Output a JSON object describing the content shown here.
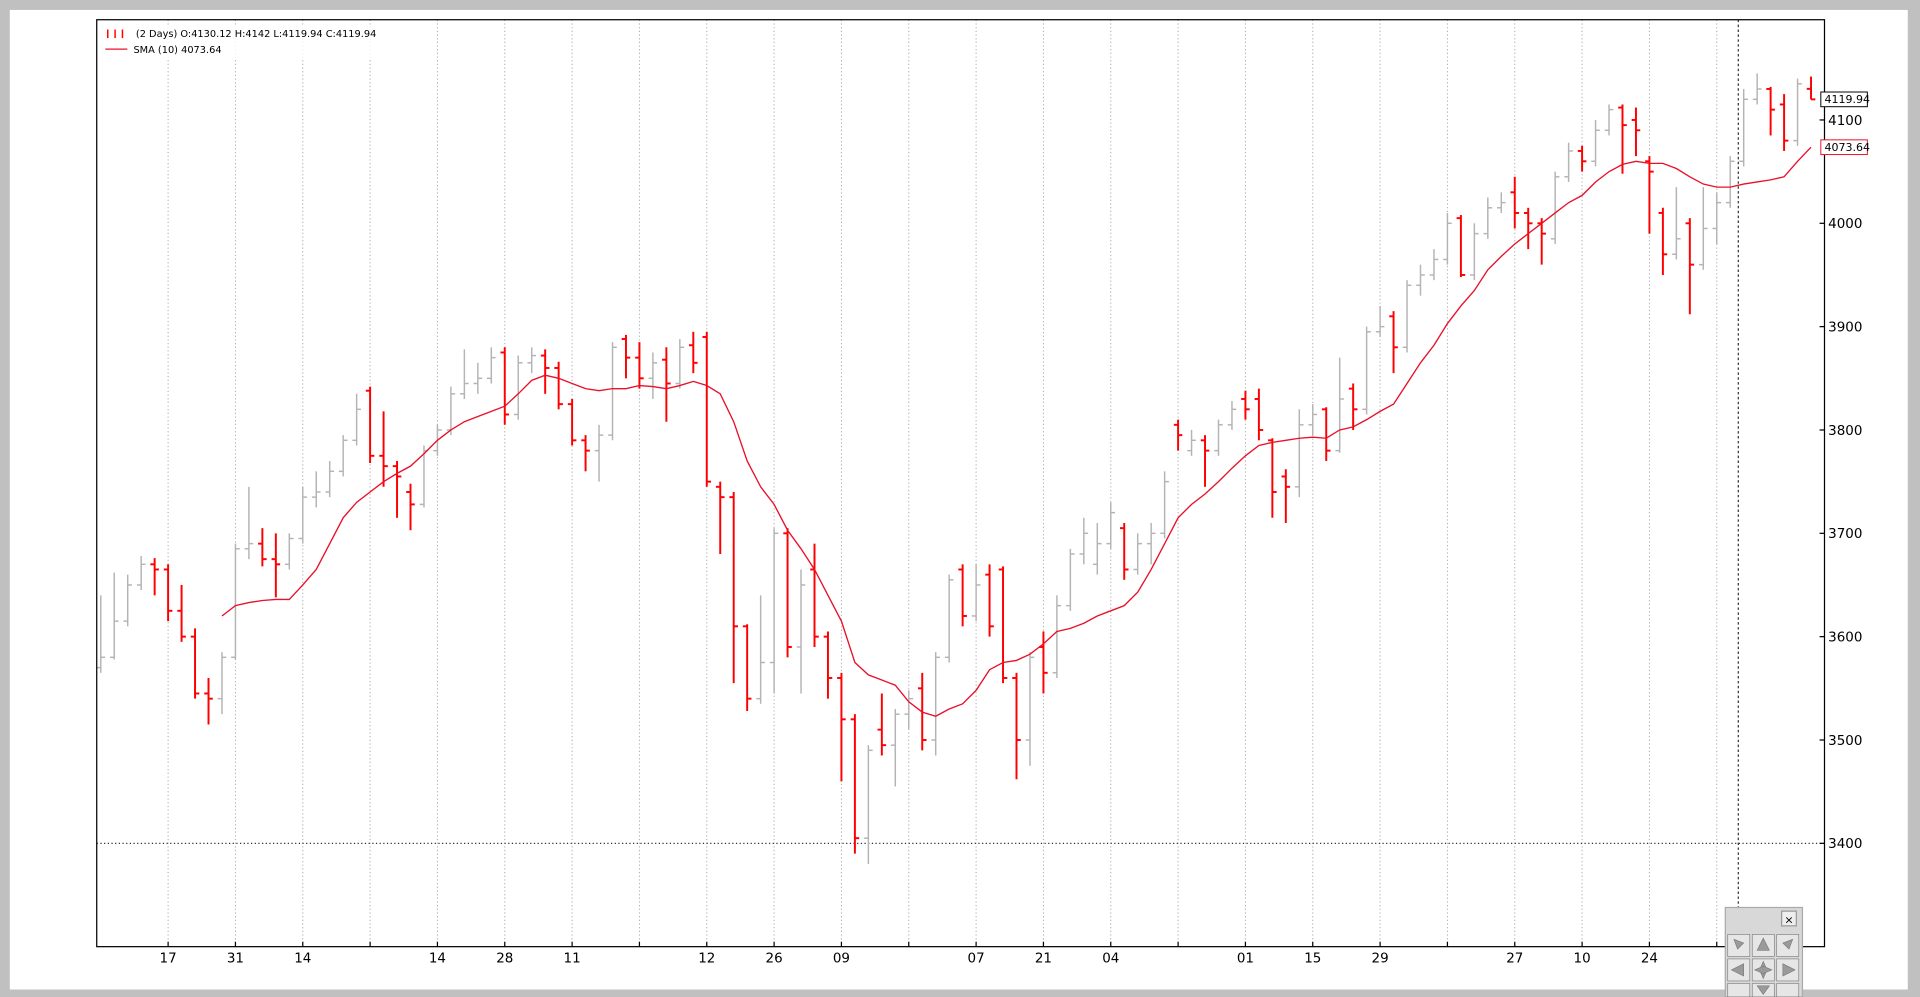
{
  "chart_data": {
    "type": "ohlc",
    "legend": [
      "(2 Days) O:4130.12 H:4142 L:4119.94 C:4119.94",
      "SMA (10) 4073.64"
    ],
    "up_color": "#b4b4b4",
    "down_color": "#ff0000",
    "ohlc": [
      [
        3570,
        3640,
        3565,
        3580
      ],
      [
        3580,
        3662,
        3578,
        3615
      ],
      [
        3615,
        3660,
        3610,
        3650
      ],
      [
        3650,
        3678,
        3645,
        3670
      ],
      [
        3670,
        3676,
        3640,
        3665
      ],
      [
        3665,
        3670,
        3615,
        3625
      ],
      [
        3625,
        3650,
        3595,
        3600
      ],
      [
        3600,
        3608,
        3540,
        3545
      ],
      [
        3545,
        3560,
        3515,
        3540
      ],
      [
        3540,
        3585,
        3525,
        3580
      ],
      [
        3580,
        3690,
        3578,
        3685
      ],
      [
        3685,
        3745,
        3675,
        3690
      ],
      [
        3690,
        3705,
        3668,
        3675
      ],
      [
        3675,
        3700,
        3638,
        3670
      ],
      [
        3670,
        3700,
        3665,
        3695
      ],
      [
        3695,
        3745,
        3690,
        3735
      ],
      [
        3735,
        3760,
        3725,
        3740
      ],
      [
        3740,
        3770,
        3735,
        3760
      ],
      [
        3760,
        3795,
        3755,
        3790
      ],
      [
        3790,
        3835,
        3785,
        3820
      ],
      [
        3838,
        3842,
        3768,
        3775
      ],
      [
        3775,
        3818,
        3745,
        3765
      ],
      [
        3765,
        3770,
        3715,
        3755
      ],
      [
        3740,
        3748,
        3703,
        3728
      ],
      [
        3728,
        3785,
        3725,
        3780
      ],
      [
        3780,
        3805,
        3775,
        3800
      ],
      [
        3800,
        3842,
        3795,
        3835
      ],
      [
        3835,
        3878,
        3830,
        3845
      ],
      [
        3845,
        3865,
        3835,
        3850
      ],
      [
        3850,
        3880,
        3845,
        3870
      ],
      [
        3875,
        3880,
        3805,
        3815
      ],
      [
        3815,
        3872,
        3810,
        3865
      ],
      [
        3865,
        3880,
        3855,
        3872
      ],
      [
        3872,
        3878,
        3835,
        3860
      ],
      [
        3860,
        3866,
        3820,
        3825
      ],
      [
        3825,
        3830,
        3785,
        3790
      ],
      [
        3790,
        3795,
        3760,
        3780
      ],
      [
        3780,
        3805,
        3750,
        3795
      ],
      [
        3795,
        3885,
        3790,
        3880
      ],
      [
        3888,
        3892,
        3850,
        3870
      ],
      [
        3870,
        3885,
        3840,
        3850
      ],
      [
        3850,
        3875,
        3830,
        3865
      ],
      [
        3868,
        3880,
        3808,
        3845
      ],
      [
        3845,
        3888,
        3840,
        3880
      ],
      [
        3882,
        3895,
        3855,
        3865
      ],
      [
        3890,
        3895,
        3745,
        3750
      ],
      [
        3745,
        3750,
        3680,
        3735
      ],
      [
        3735,
        3740,
        3555,
        3610
      ],
      [
        3610,
        3612,
        3528,
        3540
      ],
      [
        3540,
        3640,
        3535,
        3575
      ],
      [
        3575,
        3705,
        3545,
        3700
      ],
      [
        3700,
        3705,
        3580,
        3590
      ],
      [
        3590,
        3665,
        3545,
        3650
      ],
      [
        3665,
        3690,
        3590,
        3600
      ],
      [
        3600,
        3605,
        3540,
        3560
      ],
      [
        3560,
        3565,
        3460,
        3520
      ],
      [
        3520,
        3525,
        3390,
        3405
      ],
      [
        3405,
        3495,
        3380,
        3490
      ],
      [
        3510,
        3545,
        3485,
        3495
      ],
      [
        3495,
        3530,
        3455,
        3525
      ],
      [
        3525,
        3548,
        3510,
        3540
      ],
      [
        3550,
        3565,
        3490,
        3500
      ],
      [
        3500,
        3585,
        3485,
        3580
      ],
      [
        3580,
        3660,
        3575,
        3655
      ],
      [
        3665,
        3670,
        3610,
        3620
      ],
      [
        3620,
        3670,
        3615,
        3650
      ],
      [
        3660,
        3670,
        3600,
        3610
      ],
      [
        3665,
        3668,
        3555,
        3560
      ],
      [
        3560,
        3565,
        3462,
        3500
      ],
      [
        3500,
        3585,
        3475,
        3580
      ],
      [
        3590,
        3605,
        3545,
        3565
      ],
      [
        3565,
        3640,
        3560,
        3630
      ],
      [
        3630,
        3685,
        3625,
        3680
      ],
      [
        3680,
        3715,
        3670,
        3700
      ],
      [
        3670,
        3710,
        3660,
        3690
      ],
      [
        3690,
        3730,
        3685,
        3720
      ],
      [
        3705,
        3710,
        3655,
        3665
      ],
      [
        3665,
        3700,
        3660,
        3690
      ],
      [
        3690,
        3710,
        3670,
        3700
      ],
      [
        3700,
        3760,
        3695,
        3750
      ],
      [
        3805,
        3810,
        3780,
        3795
      ],
      [
        3780,
        3800,
        3775,
        3790
      ],
      [
        3790,
        3795,
        3745,
        3780
      ],
      [
        3780,
        3810,
        3775,
        3805
      ],
      [
        3805,
        3828,
        3800,
        3820
      ],
      [
        3830,
        3838,
        3810,
        3820
      ],
      [
        3830,
        3840,
        3790,
        3800
      ],
      [
        3790,
        3792,
        3715,
        3740
      ],
      [
        3755,
        3762,
        3710,
        3745
      ],
      [
        3745,
        3820,
        3735,
        3805
      ],
      [
        3805,
        3825,
        3795,
        3815
      ],
      [
        3820,
        3822,
        3770,
        3780
      ],
      [
        3780,
        3870,
        3778,
        3830
      ],
      [
        3840,
        3845,
        3800,
        3820
      ],
      [
        3820,
        3900,
        3815,
        3895
      ],
      [
        3895,
        3920,
        3890,
        3900
      ],
      [
        3910,
        3915,
        3855,
        3880
      ],
      [
        3880,
        3945,
        3875,
        3940
      ],
      [
        3940,
        3960,
        3930,
        3950
      ],
      [
        3950,
        3975,
        3945,
        3965
      ],
      [
        3965,
        4010,
        3960,
        4000
      ],
      [
        4005,
        4008,
        3948,
        3950
      ],
      [
        3950,
        4000,
        3945,
        3990
      ],
      [
        3990,
        4025,
        3985,
        4015
      ],
      [
        4015,
        4030,
        4010,
        4020
      ],
      [
        4030,
        4045,
        3995,
        4010
      ],
      [
        4010,
        4015,
        3975,
        4000
      ],
      [
        4000,
        4005,
        3960,
        3990
      ],
      [
        3985,
        4050,
        3980,
        4045
      ],
      [
        4045,
        4078,
        4040,
        4070
      ],
      [
        4070,
        4075,
        4050,
        4060
      ],
      [
        4060,
        4100,
        4055,
        4090
      ],
      [
        4090,
        4115,
        4085,
        4110
      ],
      [
        4112,
        4115,
        4048,
        4095
      ],
      [
        4100,
        4112,
        4065,
        4090
      ],
      [
        4060,
        4065,
        3990,
        4050
      ],
      [
        4010,
        4015,
        3950,
        3970
      ],
      [
        3970,
        4035,
        3965,
        3985
      ],
      [
        4000,
        4005,
        3912,
        3960
      ],
      [
        3960,
        4035,
        3955,
        3995
      ],
      [
        3995,
        4030,
        3980,
        4020
      ],
      [
        4020,
        4065,
        4015,
        4060
      ],
      [
        4060,
        4130,
        4055,
        4120
      ],
      [
        4120,
        4145,
        4115,
        4130
      ],
      [
        4130,
        4132,
        4085,
        4110
      ],
      [
        4115,
        4125,
        4070,
        4080
      ],
      [
        4080,
        4140,
        4075,
        4135
      ],
      [
        4130.12,
        4142,
        4119.94,
        4119.94
      ]
    ],
    "sma": {
      "name": "SMA (10)",
      "color": "#e8102a",
      "values": [
        null,
        null,
        null,
        null,
        null,
        null,
        null,
        null,
        null,
        3620,
        3630,
        3633,
        3635,
        3636,
        3636,
        3650,
        3665,
        3690,
        3715,
        3730,
        3740,
        3750,
        3758,
        3765,
        3777,
        3790,
        3800,
        3808,
        3813,
        3818,
        3823,
        3835,
        3848,
        3853,
        3850,
        3845,
        3840,
        3838,
        3840,
        3840,
        3843,
        3842,
        3840,
        3843,
        3847,
        3843,
        3835,
        3808,
        3770,
        3745,
        3728,
        3703,
        3685,
        3665,
        3640,
        3615,
        3575,
        3563,
        3558,
        3553,
        3537,
        3527,
        3523,
        3530,
        3535,
        3548,
        3568,
        3575,
        3577,
        3583,
        3593,
        3605,
        3608,
        3613,
        3620,
        3625,
        3630,
        3643,
        3665,
        3690,
        3715,
        3728,
        3738,
        3750,
        3763,
        3775,
        3785,
        3788,
        3790,
        3792,
        3793,
        3792,
        3800,
        3803,
        3810,
        3818,
        3825,
        3845,
        3865,
        3882,
        3903,
        3920,
        3935,
        3955,
        3968,
        3980,
        3990,
        4000,
        4010,
        4020,
        4027,
        4040,
        4050,
        4057,
        4060,
        4058,
        4058,
        4053,
        4045,
        4038,
        4035,
        4035,
        4038,
        4040,
        4042,
        4045,
        4060,
        4073.64
      ]
    },
    "price_tags": [
      {
        "value": 4119.94,
        "label": "4119.94",
        "color": "#000000"
      },
      {
        "value": 4073.64,
        "label": "4073.64",
        "color": "#e8102a"
      }
    ],
    "crosshair": {
      "x": 121.6,
      "y": 3400
    },
    "xlim": [
      -0.3,
      128
    ],
    "ylim": [
      3300,
      4197
    ],
    "xticks": [
      {
        "value": 5,
        "label": "17"
      },
      {
        "value": 10,
        "label": "31"
      },
      {
        "value": 15,
        "label": "14"
      },
      {
        "value": 20,
        "label": null
      },
      {
        "value": 25,
        "label": "14"
      },
      {
        "value": 30,
        "label": "28"
      },
      {
        "value": 35,
        "label": "11"
      },
      {
        "value": 40,
        "label": null
      },
      {
        "value": 45,
        "label": "12"
      },
      {
        "value": 50,
        "label": "26"
      },
      {
        "value": 55,
        "label": "09"
      },
      {
        "value": 60,
        "label": null
      },
      {
        "value": 65,
        "label": "07"
      },
      {
        "value": 70,
        "label": "21"
      },
      {
        "value": 75,
        "label": "04"
      },
      {
        "value": 80,
        "label": null
      },
      {
        "value": 85,
        "label": "01"
      },
      {
        "value": 90,
        "label": "15"
      },
      {
        "value": 95,
        "label": "29"
      },
      {
        "value": 100,
        "label": null
      },
      {
        "value": 105,
        "label": "27"
      },
      {
        "value": 110,
        "label": "10"
      },
      {
        "value": 115,
        "label": "24"
      },
      {
        "value": 120,
        "label": null
      }
    ],
    "yticks": [
      3400,
      3500,
      3600,
      3700,
      3800,
      3900,
      4000,
      4100
    ],
    "grid": true
  }
}
